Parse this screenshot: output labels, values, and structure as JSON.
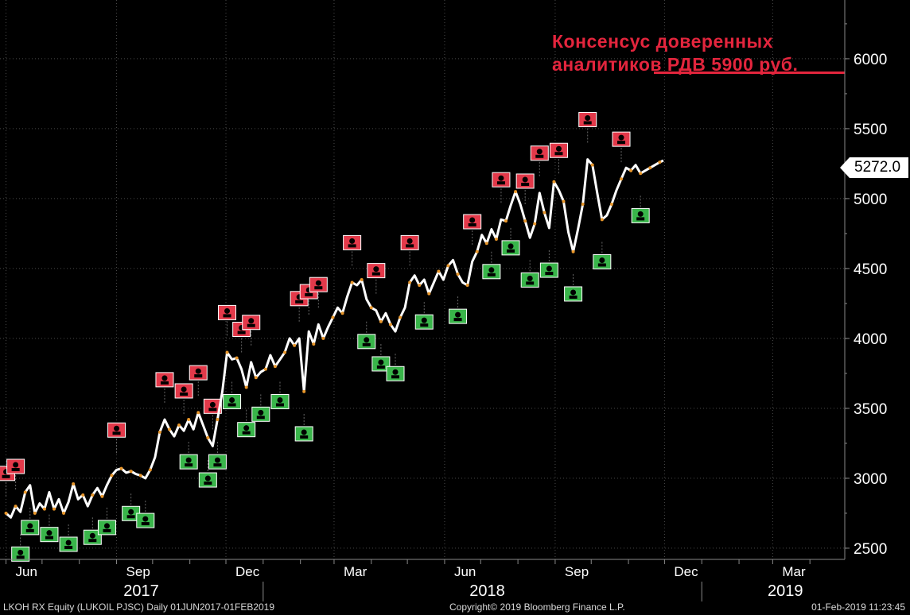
{
  "chart_data": {
    "type": "line",
    "series": [
      {
        "values": [
          [
            "2017-06-01",
            2750
          ],
          [
            "2017-06-05",
            2720
          ],
          [
            "2017-06-09",
            2800
          ],
          [
            "2017-06-13",
            2760
          ],
          [
            "2017-06-17",
            2900
          ],
          [
            "2017-06-21",
            2950
          ],
          [
            "2017-06-25",
            2750
          ],
          [
            "2017-06-29",
            2820
          ],
          [
            "2017-07-03",
            2780
          ],
          [
            "2017-07-07",
            2900
          ],
          [
            "2017-07-11",
            2780
          ],
          [
            "2017-07-15",
            2850
          ],
          [
            "2017-07-19",
            2750
          ],
          [
            "2017-07-23",
            2830
          ],
          [
            "2017-07-27",
            2960
          ],
          [
            "2017-07-31",
            2850
          ],
          [
            "2017-08-04",
            2880
          ],
          [
            "2017-08-08",
            2800
          ],
          [
            "2017-08-12",
            2880
          ],
          [
            "2017-08-16",
            2930
          ],
          [
            "2017-08-20",
            2870
          ],
          [
            "2017-08-24",
            2950
          ],
          [
            "2017-08-28",
            3020
          ],
          [
            "2017-09-01",
            3060
          ],
          [
            "2017-09-05",
            3070
          ],
          [
            "2017-09-09",
            3040
          ],
          [
            "2017-09-13",
            3050
          ],
          [
            "2017-09-17",
            3030
          ],
          [
            "2017-09-21",
            3020
          ],
          [
            "2017-09-25",
            3000
          ],
          [
            "2017-09-29",
            3060
          ],
          [
            "2017-10-03",
            3150
          ],
          [
            "2017-10-07",
            3330
          ],
          [
            "2017-10-11",
            3420
          ],
          [
            "2017-10-15",
            3350
          ],
          [
            "2017-10-19",
            3300
          ],
          [
            "2017-10-23",
            3380
          ],
          [
            "2017-10-27",
            3340
          ],
          [
            "2017-10-31",
            3420
          ],
          [
            "2017-11-04",
            3350
          ],
          [
            "2017-11-08",
            3470
          ],
          [
            "2017-11-12",
            3380
          ],
          [
            "2017-11-16",
            3290
          ],
          [
            "2017-11-20",
            3230
          ],
          [
            "2017-11-24",
            3420
          ],
          [
            "2017-11-28",
            3620
          ],
          [
            "2017-12-02",
            3900
          ],
          [
            "2017-12-06",
            3850
          ],
          [
            "2017-12-10",
            3860
          ],
          [
            "2017-12-14",
            3780
          ],
          [
            "2017-12-18",
            3650
          ],
          [
            "2017-12-22",
            3830
          ],
          [
            "2017-12-26",
            3720
          ],
          [
            "2017-12-30",
            3760
          ],
          [
            "2018-01-03",
            3780
          ],
          [
            "2018-01-07",
            3880
          ],
          [
            "2018-01-11",
            3800
          ],
          [
            "2018-01-15",
            3850
          ],
          [
            "2018-01-19",
            3900
          ],
          [
            "2018-01-23",
            4000
          ],
          [
            "2018-01-27",
            3950
          ],
          [
            "2018-01-31",
            4000
          ],
          [
            "2018-02-04",
            3620
          ],
          [
            "2018-02-08",
            4050
          ],
          [
            "2018-02-12",
            3960
          ],
          [
            "2018-02-16",
            4100
          ],
          [
            "2018-02-20",
            4000
          ],
          [
            "2018-02-24",
            4080
          ],
          [
            "2018-02-28",
            4150
          ],
          [
            "2018-03-04",
            4220
          ],
          [
            "2018-03-08",
            4180
          ],
          [
            "2018-03-12",
            4300
          ],
          [
            "2018-03-16",
            4400
          ],
          [
            "2018-03-20",
            4380
          ],
          [
            "2018-03-24",
            4420
          ],
          [
            "2018-03-28",
            4280
          ],
          [
            "2018-04-01",
            4220
          ],
          [
            "2018-04-05",
            4200
          ],
          [
            "2018-04-09",
            4120
          ],
          [
            "2018-04-13",
            4180
          ],
          [
            "2018-04-17",
            4100
          ],
          [
            "2018-04-21",
            4050
          ],
          [
            "2018-04-25",
            4150
          ],
          [
            "2018-04-29",
            4220
          ],
          [
            "2018-05-03",
            4400
          ],
          [
            "2018-05-07",
            4450
          ],
          [
            "2018-05-11",
            4380
          ],
          [
            "2018-05-15",
            4420
          ],
          [
            "2018-05-19",
            4320
          ],
          [
            "2018-05-23",
            4400
          ],
          [
            "2018-05-27",
            4480
          ],
          [
            "2018-05-31",
            4420
          ],
          [
            "2018-06-04",
            4520
          ],
          [
            "2018-06-08",
            4560
          ],
          [
            "2018-06-12",
            4460
          ],
          [
            "2018-06-16",
            4400
          ],
          [
            "2018-06-20",
            4380
          ],
          [
            "2018-06-24",
            4550
          ],
          [
            "2018-06-28",
            4620
          ],
          [
            "2018-07-02",
            4740
          ],
          [
            "2018-07-06",
            4680
          ],
          [
            "2018-07-10",
            4780
          ],
          [
            "2018-07-14",
            4710
          ],
          [
            "2018-07-18",
            4850
          ],
          [
            "2018-07-22",
            4840
          ],
          [
            "2018-07-26",
            4950
          ],
          [
            "2018-07-30",
            5050
          ],
          [
            "2018-08-03",
            4960
          ],
          [
            "2018-08-07",
            4840
          ],
          [
            "2018-08-11",
            4720
          ],
          [
            "2018-08-15",
            4820
          ],
          [
            "2018-08-19",
            5040
          ],
          [
            "2018-08-23",
            4900
          ],
          [
            "2018-08-27",
            4790
          ],
          [
            "2018-08-31",
            5120
          ],
          [
            "2018-09-04",
            5060
          ],
          [
            "2018-09-08",
            4980
          ],
          [
            "2018-09-12",
            4760
          ],
          [
            "2018-09-16",
            4620
          ],
          [
            "2018-09-20",
            4780
          ],
          [
            "2018-09-24",
            4960
          ],
          [
            "2018-09-28",
            5280
          ],
          [
            "2018-10-02",
            5240
          ],
          [
            "2018-10-06",
            5040
          ],
          [
            "2018-10-10",
            4850
          ],
          [
            "2018-10-14",
            4880
          ],
          [
            "2018-10-18",
            4960
          ],
          [
            "2018-10-22",
            5060
          ],
          [
            "2018-10-26",
            5140
          ],
          [
            "2018-10-30",
            5220
          ],
          [
            "2018-11-03",
            5200
          ],
          [
            "2018-11-07",
            5240
          ],
          [
            "2018-11-11",
            5180
          ],
          [
            "2018-11-15",
            5200
          ],
          [
            "2018-11-19",
            5220
          ],
          [
            "2018-11-23",
            5240
          ],
          [
            "2018-11-27",
            5260
          ],
          [
            "2018-11-30",
            5272
          ]
        ]
      }
    ],
    "xaxis": {
      "type": "date",
      "range": [
        "2017-05-27",
        "2019-04-30"
      ],
      "month_labels": [
        "Jun",
        "Sep",
        "Dec",
        "Mar",
        "Jun",
        "Sep",
        "Dec",
        "Mar"
      ],
      "year_labels": [
        "2017",
        "2018",
        "2019"
      ]
    },
    "yaxis": {
      "range": [
        2420,
        6420
      ],
      "position": "right",
      "ticks": [
        "2500",
        "3000",
        "3500",
        "4000",
        "4500",
        "5000",
        "5500",
        "6000"
      ]
    },
    "grid": true,
    "last_value_label": "5272.0",
    "reference_line": {
      "value": 5900,
      "color": "#e3253d"
    },
    "annotation": [
      "Консенсус доверенных",
      "аналитиков РДВ 5900 руб."
    ],
    "colors": {
      "line": "#ffffff",
      "line_highlight": "#e8962a",
      "sell_marker": "#e3394a",
      "buy_marker": "#39b54a",
      "annotation": "#e3253d",
      "grid": "#4a4a4a"
    }
  },
  "footer": {
    "left": "LKOH RX Equity (LUKOIL PJSC)  Daily 01JUN2017-01FEB2019",
    "center": "Copyright© 2019 Bloomberg Finance L.P.",
    "right": "01-Feb-2019 11:23:45"
  }
}
